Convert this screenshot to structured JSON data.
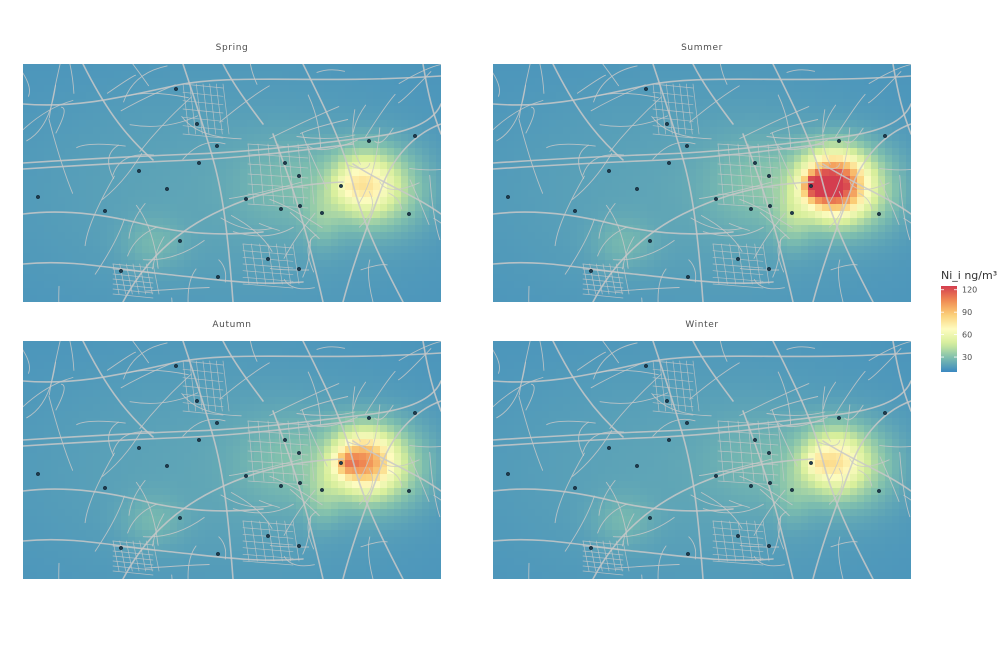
{
  "chart_data": {
    "type": "heatmap",
    "subtype": "faceted spatial heatmap with road network and monitoring stations",
    "facets": [
      {
        "title": "Spring",
        "peak": 80,
        "intensity": 0.78,
        "secondary": 0.55
      },
      {
        "title": "Summer",
        "peak": 120,
        "intensity": 1.0,
        "secondary": 0.75
      },
      {
        "title": "Autumn",
        "peak": 100,
        "intensity": 0.88,
        "secondary": 0.65
      },
      {
        "title": "Winter",
        "peak": 90,
        "intensity": 0.7,
        "secondary": 0.45
      }
    ],
    "legend": {
      "title": "Ni_i ng/m³",
      "ticks": [
        "120",
        "90",
        "60",
        "30"
      ],
      "tick_values": [
        120,
        90,
        60,
        30
      ],
      "range": [
        10,
        125
      ],
      "position": "right",
      "palette": [
        "#3b88c0",
        "#7fbfae",
        "#d6ee9b",
        "#fefcc0",
        "#fbcf78",
        "#f08a52",
        "#d43d4f"
      ]
    },
    "stations": [
      [
        176,
        89
      ],
      [
        197,
        124
      ],
      [
        217,
        146
      ],
      [
        199,
        163
      ],
      [
        139,
        171
      ],
      [
        167,
        189
      ],
      [
        38,
        197
      ],
      [
        105,
        211
      ],
      [
        246,
        199
      ],
      [
        281,
        209
      ],
      [
        300,
        206
      ],
      [
        322,
        213
      ],
      [
        299,
        176
      ],
      [
        285,
        163
      ],
      [
        341,
        186
      ],
      [
        369,
        141
      ],
      [
        415,
        136
      ],
      [
        409,
        214
      ],
      [
        180,
        241
      ],
      [
        268,
        259
      ],
      [
        299,
        269
      ],
      [
        121,
        271
      ],
      [
        218,
        277
      ]
    ],
    "station_color": "#1f3a4d",
    "road_color": "#c8c8c8",
    "background_color": "#3f8ac1"
  }
}
